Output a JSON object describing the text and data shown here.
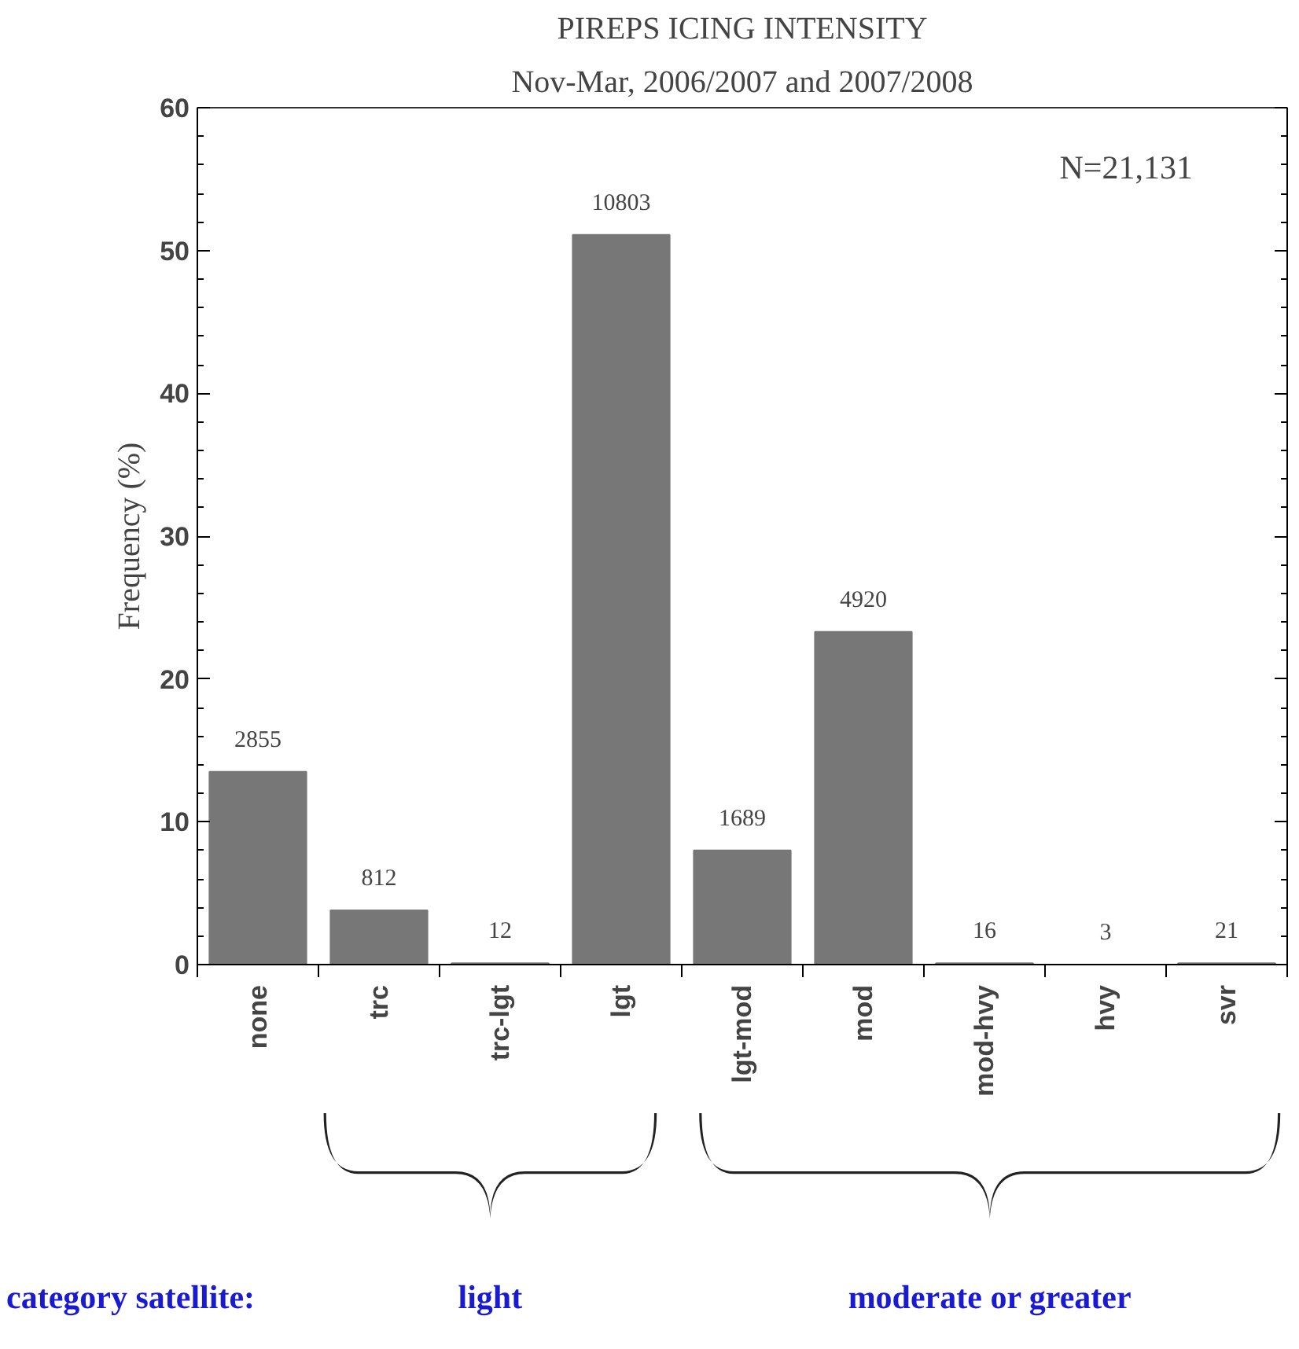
{
  "chart_data": {
    "type": "bar",
    "title": "PIREPS ICING INTENSITY",
    "subtitle": "Nov-Mar, 2006/2007 and 2007/2008",
    "ylabel": "Frequency (%)",
    "categories": [
      "none",
      "trc",
      "trc-lgt",
      "lgt",
      "lgt-mod",
      "mod",
      "mod-hvy",
      "hvy",
      "svr"
    ],
    "values": [
      13.5,
      3.8,
      0.1,
      51.1,
      8.0,
      23.3,
      0.1,
      0.0,
      0.1
    ],
    "color": "#777777",
    "ylim": [
      0,
      60
    ],
    "yticks": [
      0,
      10,
      20,
      30,
      40,
      50,
      60
    ],
    "grid": false,
    "annotations": [
      "N=21,131",
      "category satellite:",
      "light",
      "moderate or greater",
      {
        "text": "2855",
        "x": "none",
        "y": 13.5
      },
      {
        "text": "812",
        "x": "trc",
        "y": 3.8
      },
      {
        "text": "12",
        "x": "trc-lgt",
        "y": 0.1
      },
      {
        "text": "10803",
        "x": "lgt",
        "y": 51.1
      },
      {
        "text": "1689",
        "x": "lgt-mod",
        "y": 8.0
      },
      {
        "text": "4920",
        "x": "mod",
        "y": 23.3
      },
      {
        "text": "16",
        "x": "mod-hvy",
        "y": 0.1
      },
      {
        "text": "3",
        "x": "hvy",
        "y": 0.0
      },
      {
        "text": "21",
        "x": "svr",
        "y": 0.1
      }
    ]
  }
}
